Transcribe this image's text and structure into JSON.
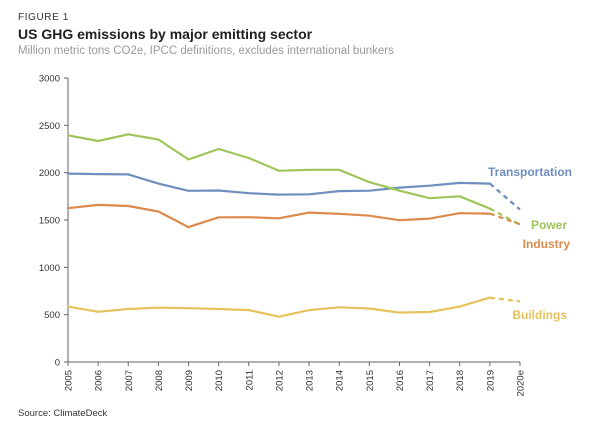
{
  "figure_label": "FIGURE 1",
  "source": "Source: ClimateDeck",
  "chart_data": {
    "type": "line",
    "title": "US GHG emissions by major emitting sector",
    "subtitle": "Million metric tons CO2e, IPCC definitions, excludes international bunkers",
    "xlabel": "",
    "ylabel": "",
    "ylim": [
      0,
      3000
    ],
    "yticks": [
      "0",
      "500",
      "1000",
      "1500",
      "2000",
      "2500",
      "3000"
    ],
    "categories": [
      "2005",
      "2006",
      "2007",
      "2008",
      "2009",
      "2010",
      "2011",
      "2012",
      "2013",
      "2014",
      "2015",
      "2016",
      "2017",
      "2018",
      "2019",
      "2020e"
    ],
    "grid": false,
    "legend": "inline labels at line ends",
    "estimate_style": "dashed segment 2019 to 2020e",
    "series": [
      {
        "name": "Transportation",
        "color": "#6f8fbf",
        "values": [
          1990,
          1985,
          1982,
          1885,
          1808,
          1812,
          1783,
          1768,
          1772,
          1805,
          1810,
          1842,
          1862,
          1892,
          1885,
          1610
        ]
      },
      {
        "name": "Power",
        "color": "#9dc55a",
        "values": [
          2395,
          2335,
          2405,
          2350,
          2140,
          2250,
          2155,
          2020,
          2030,
          2030,
          1900,
          1810,
          1730,
          1750,
          1620,
          1450
        ]
      },
      {
        "name": "Industry",
        "color": "#dc8a4c",
        "values": [
          1625,
          1660,
          1648,
          1590,
          1425,
          1528,
          1530,
          1518,
          1578,
          1565,
          1545,
          1498,
          1515,
          1572,
          1568,
          1455
        ]
      },
      {
        "name": "Buildings",
        "color": "#e6c25c",
        "values": [
          585,
          530,
          560,
          575,
          568,
          560,
          548,
          478,
          548,
          578,
          565,
          522,
          528,
          585,
          680,
          640
        ]
      }
    ]
  }
}
